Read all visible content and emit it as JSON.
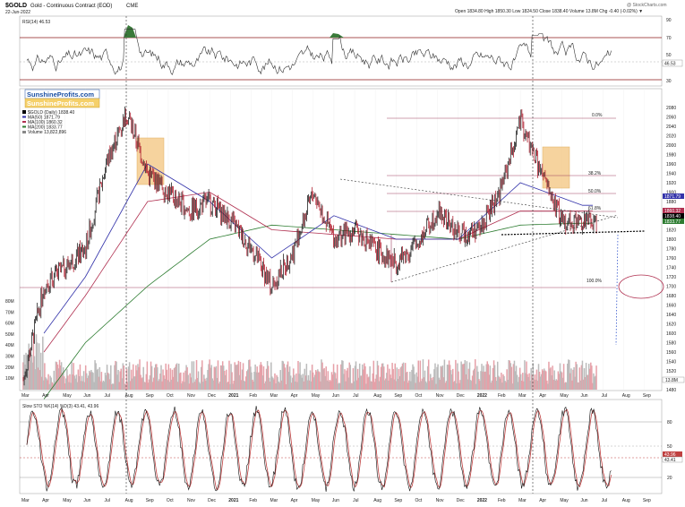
{
  "header": {
    "symbol": "$GOLD",
    "name": "Gold - Continuous Contract (EOD)",
    "exchange": "CME",
    "date": "22-Jun-2022",
    "quote": "Open 1834.80  High 1850.30  Low 1824.50  Close 1838.40  Volume 13.8M  Chg -0.40 (-0.02%) ▼",
    "watermark": "@ StockCharts.com"
  },
  "rsi": {
    "label": "RSI(14) 46.53",
    "value": 46.53,
    "ticks": [
      "90",
      "70",
      "50",
      "30"
    ],
    "current_label": "46.53"
  },
  "price_panel": {
    "legend": [
      "$GOLD (Daily) 1838.40",
      "MA(50) 1871.79",
      "MA(100) 1860.32",
      "MA(200) 1833.77",
      "Volume 13,822,896"
    ],
    "legend_colors": [
      "#000000",
      "#3333aa",
      "#b03050",
      "#2e7d32",
      "#888888"
    ],
    "brand_lines": [
      "SunshineProfits.com",
      "SunshineProfits.com"
    ],
    "fib_labels": [
      "0.0%",
      "38.2%",
      "50.0%",
      "61.8%",
      "100.0%"
    ],
    "price_ticks": [
      "2080",
      "2060",
      "2040",
      "2020",
      "2000",
      "1980",
      "1960",
      "1940",
      "1920",
      "1900",
      "1880",
      "1860",
      "1840",
      "1820",
      "1800",
      "1780",
      "1760",
      "1740",
      "1720",
      "1700",
      "1680",
      "1660",
      "1640",
      "1620",
      "1600",
      "1580",
      "1560",
      "1540",
      "1520",
      "1500",
      "1480"
    ],
    "price_badges": [
      "1871.79",
      "1860.32",
      "1838.40",
      "1833.77"
    ],
    "volume_ticks": [
      "80M",
      "70M",
      "60M",
      "50M",
      "40M",
      "30M",
      "20M",
      "10M"
    ],
    "volume_badge": "13.8M"
  },
  "stoch": {
    "label": "Slow STO %K(14) %D(3) 43.41, 43.96",
    "ticks": [
      "80",
      "50",
      "20"
    ],
    "badges": [
      "43.96",
      "43.41"
    ]
  },
  "x_axis": {
    "labels": [
      "Mar",
      "Apr",
      "May",
      "Jun",
      "Jul",
      "Aug",
      "Sep",
      "Oct",
      "Nov",
      "Dec",
      "2021",
      "Feb",
      "Mar",
      "Apr",
      "May",
      "Jun",
      "Jul",
      "Aug",
      "Sep",
      "Oct",
      "Nov",
      "Dec",
      "2022",
      "Feb",
      "Mar",
      "Apr",
      "May",
      "Jun",
      "Jul",
      "Aug",
      "Sep"
    ]
  },
  "chart_data": {
    "type": "line",
    "title": "$GOLD Gold - Continuous Contract (EOD) CME",
    "x_range": [
      "2020-03",
      "2022-09"
    ],
    "ylim": [
      1480,
      2080
    ],
    "series": [
      {
        "name": "$GOLD (Daily)",
        "x": [
          "2020-03",
          "2020-04",
          "2020-05",
          "2020-06",
          "2020-07",
          "2020-08",
          "2020-09",
          "2020-10",
          "2020-11",
          "2020-12",
          "2021-01",
          "2021-02",
          "2021-03",
          "2021-04",
          "2021-05",
          "2021-06",
          "2021-07",
          "2021-08",
          "2021-09",
          "2021-10",
          "2021-11",
          "2021-12",
          "2022-01",
          "2022-02",
          "2022-03",
          "2022-04",
          "2022-05",
          "2022-06"
        ],
        "values": [
          1500,
          1700,
          1740,
          1780,
          1960,
          2070,
          1940,
          1900,
          1860,
          1880,
          1840,
          1780,
          1700,
          1770,
          1900,
          1800,
          1820,
          1780,
          1750,
          1790,
          1860,
          1810,
          1820,
          1900,
          2050,
          1940,
          1840,
          1838
        ]
      },
      {
        "name": "MA(50)",
        "x": [
          "2020-06",
          "2020-09",
          "2020-12",
          "2021-03",
          "2021-06",
          "2021-09",
          "2021-12",
          "2022-03",
          "2022-06"
        ],
        "values": [
          1720,
          1960,
          1880,
          1760,
          1850,
          1800,
          1800,
          1920,
          1872
        ]
      },
      {
        "name": "MA(100)",
        "x": [
          "2020-06",
          "2020-09",
          "2020-12",
          "2021-03",
          "2021-06",
          "2021-09",
          "2021-12",
          "2022-03",
          "2022-06"
        ],
        "values": [
          1680,
          1880,
          1900,
          1820,
          1810,
          1800,
          1800,
          1860,
          1860
        ]
      },
      {
        "name": "MA(200)",
        "x": [
          "2020-06",
          "2020-09",
          "2020-12",
          "2021-03",
          "2021-06",
          "2021-09",
          "2021-12",
          "2022-03",
          "2022-06"
        ],
        "values": [
          1580,
          1700,
          1800,
          1830,
          1820,
          1810,
          1800,
          1830,
          1834
        ]
      }
    ],
    "legend": "top-left",
    "grid": true
  }
}
